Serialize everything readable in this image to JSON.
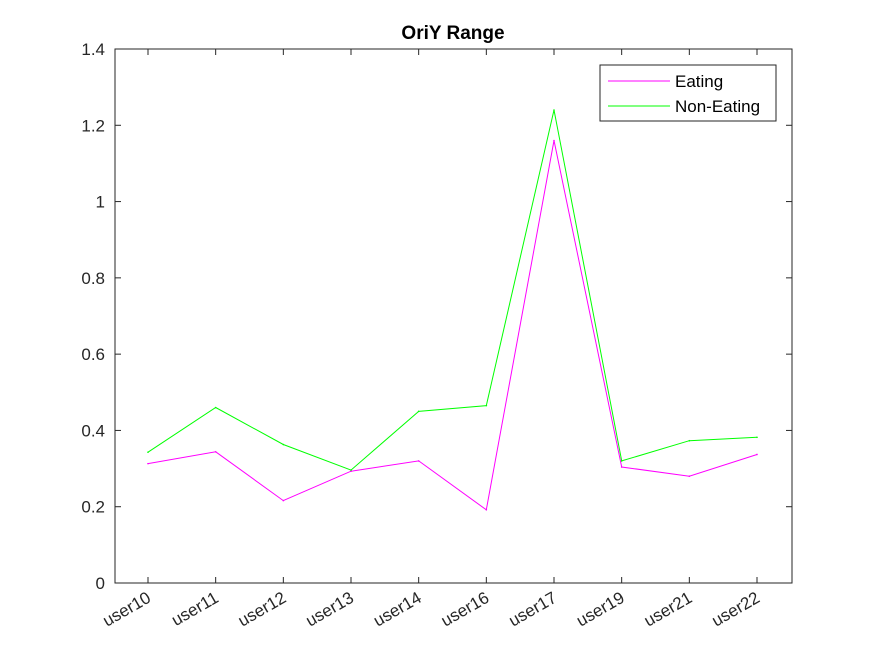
{
  "chart_data": {
    "type": "line",
    "title": "OriY Range",
    "xlabel": "",
    "ylabel": "",
    "categories": [
      "user10",
      "user11",
      "user12",
      "user13",
      "user14",
      "user16",
      "user17",
      "user19",
      "user21",
      "user22"
    ],
    "ylim": [
      0,
      1.4
    ],
    "yticks": [
      "0",
      "0.2",
      "0.4",
      "0.6",
      "0.8",
      "1",
      "1.2",
      "1.4"
    ],
    "grid": false,
    "legend_position": "top-right",
    "series": [
      {
        "name": "Eating",
        "color": "#ff00ff",
        "values": [
          0.313,
          0.344,
          0.216,
          0.293,
          0.32,
          0.192,
          1.16,
          0.304,
          0.28,
          0.337
        ]
      },
      {
        "name": "Non-Eating",
        "color": "#00ff00",
        "values": [
          0.343,
          0.46,
          0.363,
          0.296,
          0.45,
          0.465,
          1.24,
          0.32,
          0.373,
          0.382
        ]
      }
    ]
  }
}
